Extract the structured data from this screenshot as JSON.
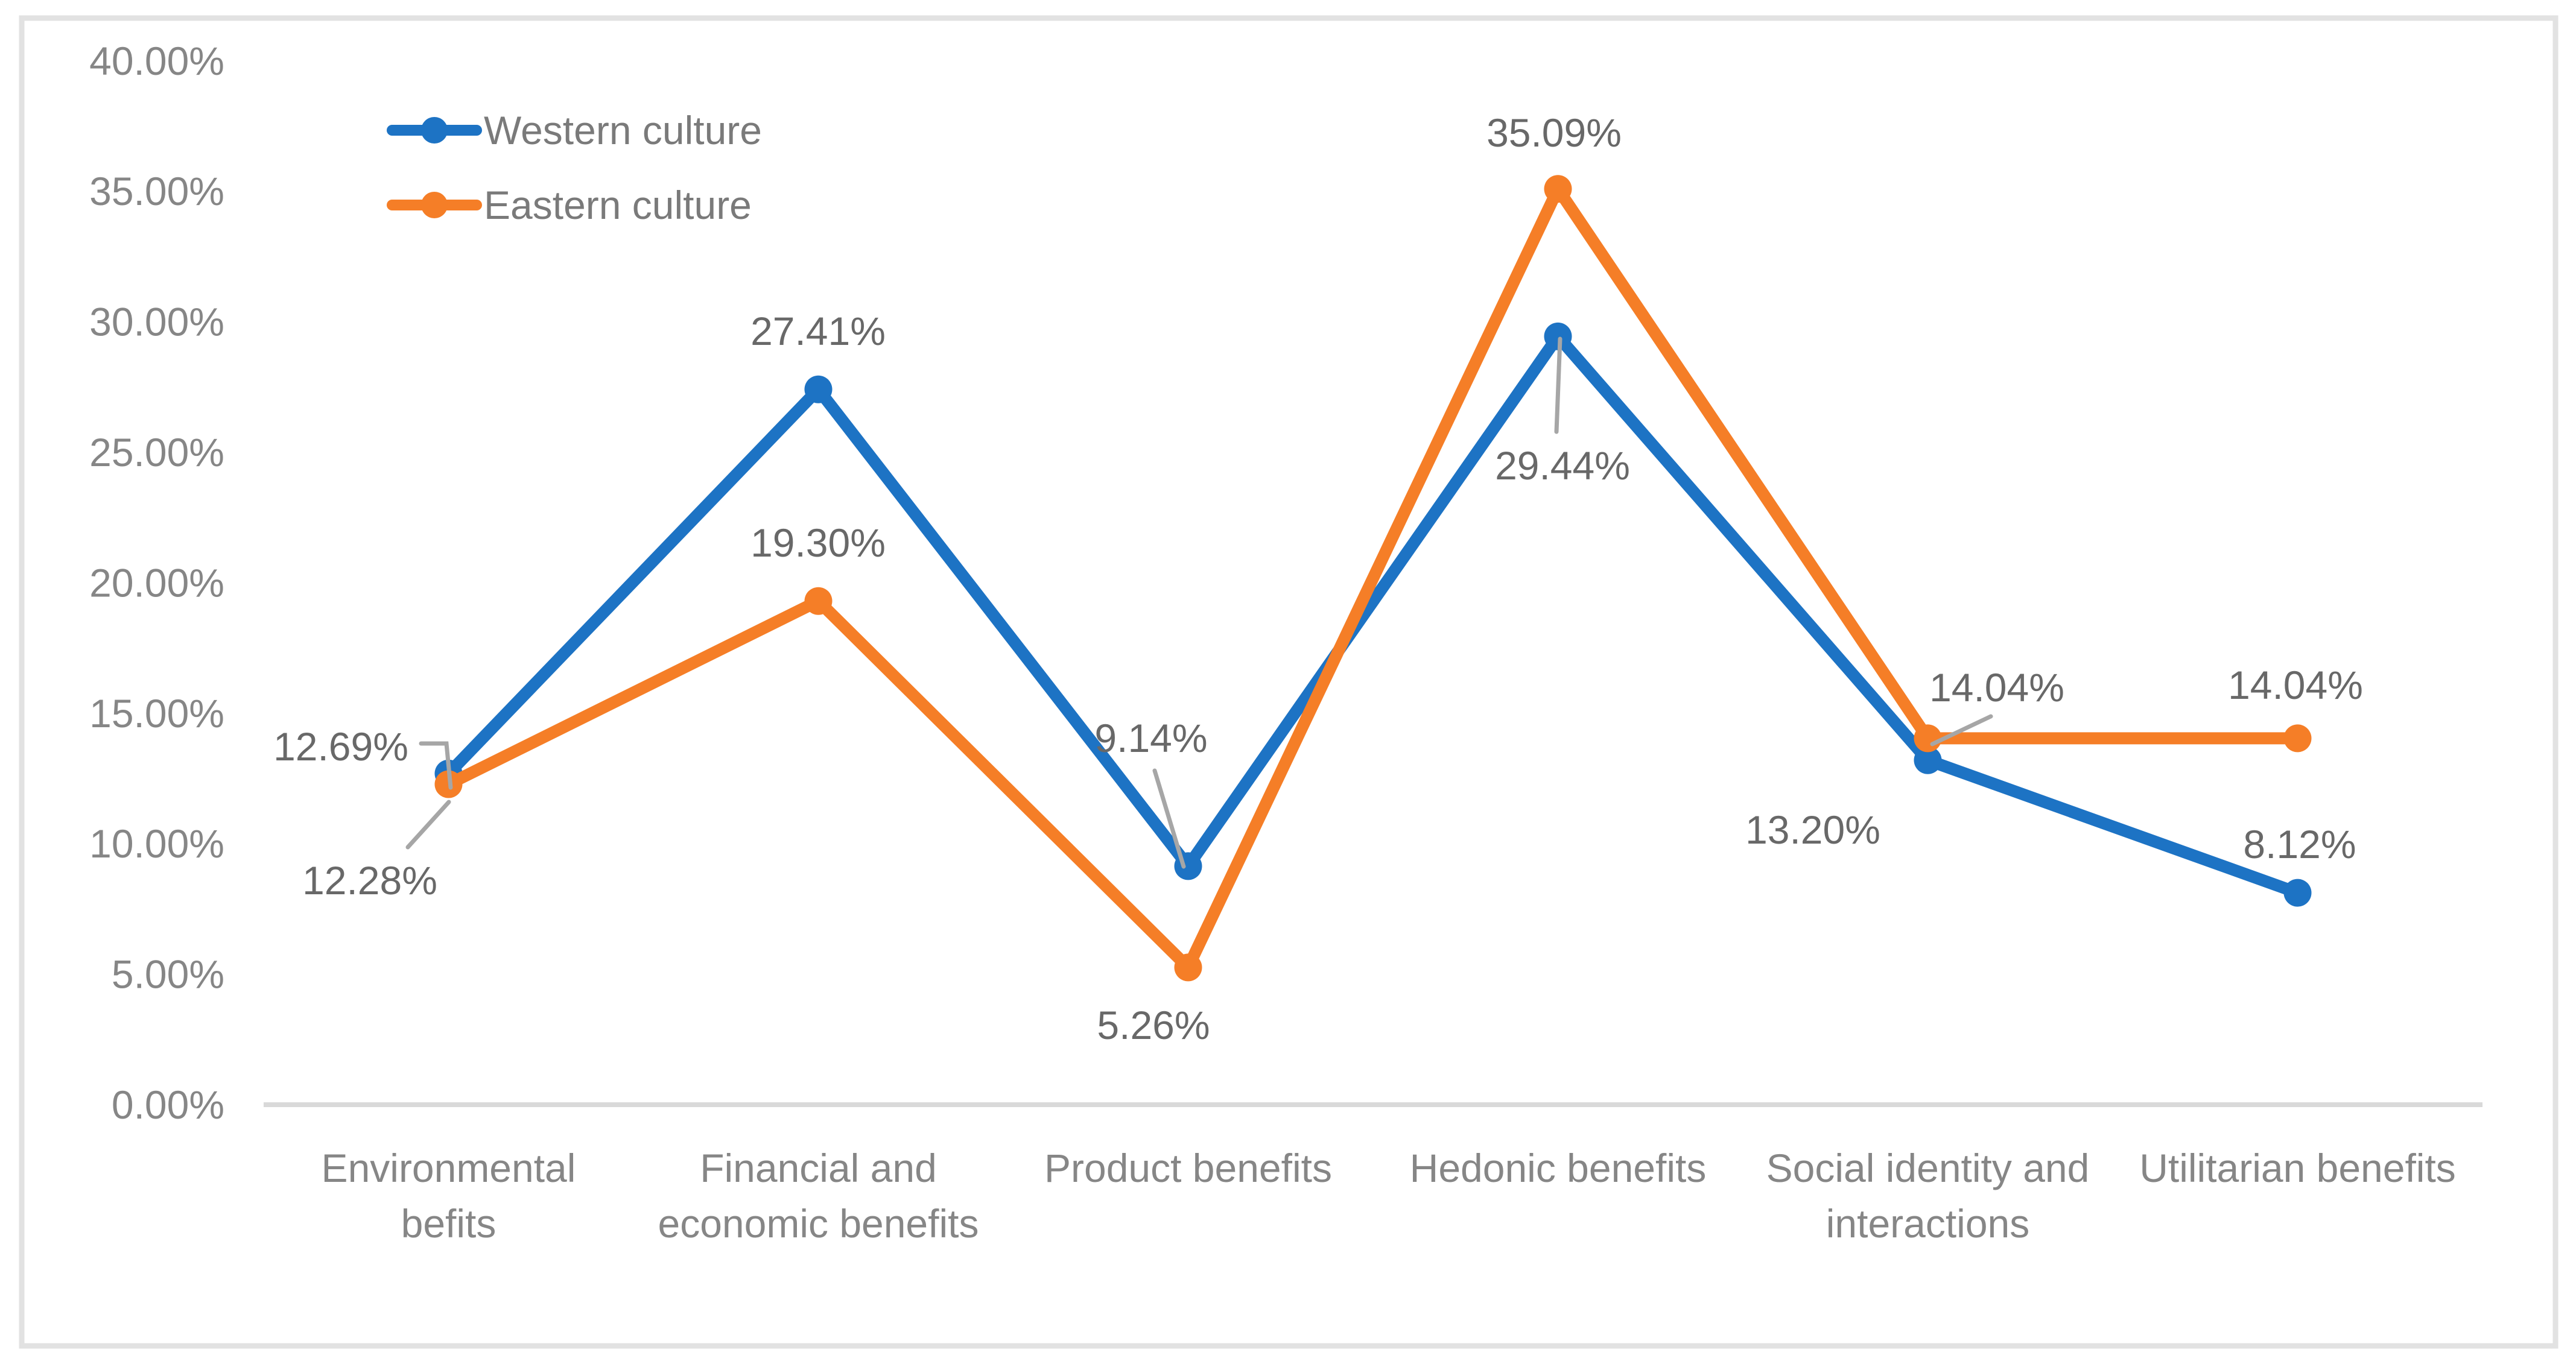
{
  "figure": {
    "background": "#FFFFFF",
    "border_color": "#E2E2E2"
  },
  "legend": {
    "position": "top-left-inside",
    "items": [
      {
        "label": "Western culture",
        "color": "#1D73C4",
        "marker": "line-circle-icon"
      },
      {
        "label": "Eastern culture",
        "color": "#F57E27",
        "marker": "line-circle-icon"
      }
    ]
  },
  "chart_data": {
    "type": "line",
    "categories": [
      "Environmental befits",
      "Financial and economic benefits",
      "Product benefits",
      "Hedonic benefits",
      "Social identity and interactions",
      "Utilitarian benefits"
    ],
    "category_label_lines": [
      [
        "Environmental",
        "befits"
      ],
      [
        "Financial and",
        "economic benefits"
      ],
      [
        "Product benefits"
      ],
      [
        "Hedonic benefits"
      ],
      [
        "Social identity and",
        "interactions"
      ],
      [
        "Utilitarian benefits"
      ]
    ],
    "series": [
      {
        "name": "Western culture",
        "color": "#1D73C4",
        "values": [
          12.69,
          27.41,
          9.14,
          29.44,
          13.2,
          8.12
        ],
        "labels": [
          "12.69%",
          "27.41%",
          "9.14%",
          "29.44%",
          "13.20%",
          "8.12%"
        ]
      },
      {
        "name": "Eastern culture",
        "color": "#F57E27",
        "values": [
          12.28,
          19.3,
          5.26,
          35.09,
          14.04,
          14.04
        ],
        "labels": [
          "12.28%",
          "19.30%",
          "5.26%",
          "35.09%",
          "14.04%",
          "14.04%"
        ]
      }
    ],
    "yticks": [
      "0.00%",
      "5.00%",
      "10.00%",
      "15.00%",
      "20.00%",
      "25.00%",
      "30.00%",
      "35.00%",
      "40.00%"
    ],
    "ytick_values": [
      0,
      5,
      10,
      15,
      20,
      25,
      30,
      35,
      40
    ],
    "ylim": [
      0,
      40
    ],
    "grid": false,
    "legend_position": "top-left-inside"
  },
  "colors": {
    "western_series": "#1D73C4",
    "eastern_series": "#F57E27",
    "axis_line": "#D9D9D9",
    "figure_border": "#E2E2E2",
    "tick_label": "#868686",
    "category_label": "#868686",
    "data_label": "#686868",
    "legend_label": "#7A7A7A",
    "leader_line": "#A6A6A6"
  }
}
